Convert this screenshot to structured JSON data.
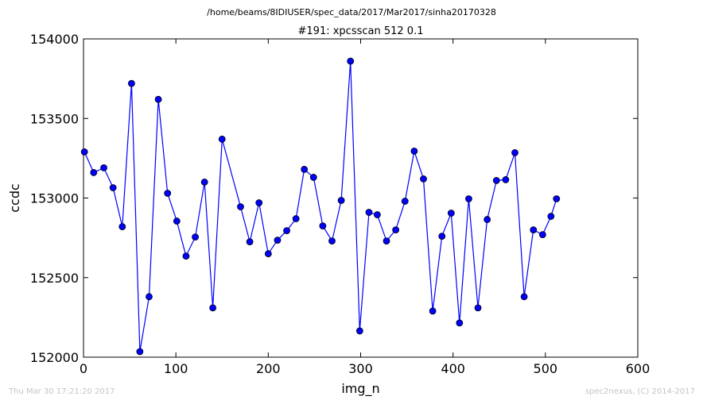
{
  "suptitle": "/home/beams/8IDIUSER/spec_data/2017/Mar2017/sinha20170328",
  "footer": {
    "timestamp": "Thu Mar 30 17:21:20 2017",
    "credit": "spec2nexus, (C) 2014-2017"
  },
  "chart_data": {
    "type": "line",
    "title": "#191: xpcsscan 512 0.1",
    "xlabel": "img_n",
    "ylabel": "ccdc",
    "xlim": [
      0,
      600
    ],
    "ylim": [
      152000,
      154000
    ],
    "xticks": [
      0,
      100,
      200,
      300,
      400,
      500,
      600
    ],
    "yticks": [
      152000,
      152500,
      153000,
      153500,
      154000
    ],
    "grid": false,
    "line_color": "#0000ff",
    "marker": "circle",
    "series": [
      {
        "x": [
          1,
          11,
          22,
          32,
          42,
          52,
          61,
          71,
          81,
          91,
          101,
          111,
          121,
          131,
          140,
          150,
          170,
          180,
          190,
          200,
          210,
          220,
          230,
          239,
          249,
          259,
          269,
          279,
          289,
          299,
          309,
          318,
          328,
          338,
          348,
          358,
          368,
          378,
          388,
          398,
          407,
          417,
          427,
          437,
          447,
          457,
          467,
          477,
          487,
          497,
          506,
          512
        ],
        "y": [
          153290,
          153160,
          153190,
          153065,
          152820,
          153720,
          152035,
          152380,
          153620,
          153030,
          152855,
          152635,
          152755,
          153100,
          152310,
          153370,
          152945,
          152725,
          152970,
          152650,
          152735,
          152795,
          152870,
          153180,
          153130,
          152825,
          152730,
          152985,
          153860,
          152165,
          152910,
          152895,
          152730,
          152800,
          152980,
          153295,
          153120,
          152290,
          152760,
          152905,
          152215,
          152995,
          152310,
          152865,
          153110,
          153115,
          153285,
          152380,
          152800,
          152770,
          152885,
          152995
        ]
      }
    ]
  }
}
